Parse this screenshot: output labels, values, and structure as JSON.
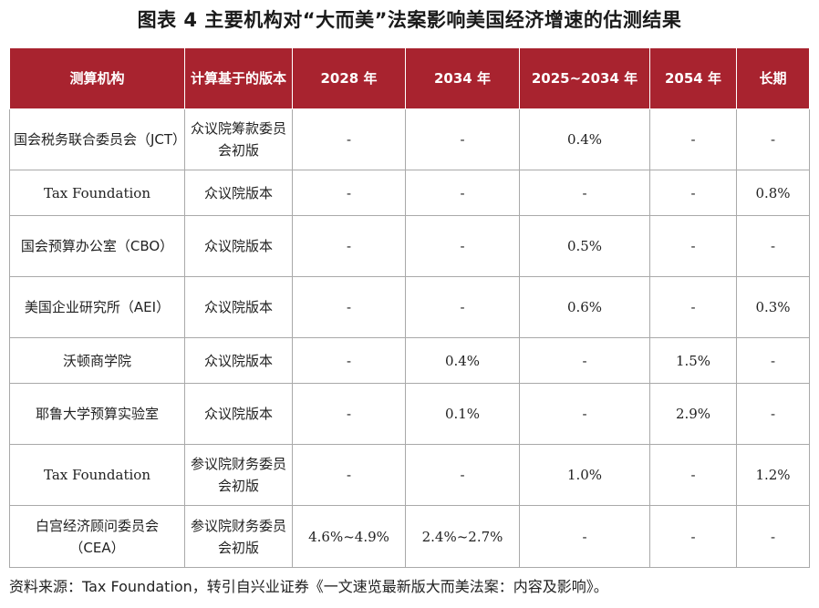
{
  "title": "图表 4  主要机构对“大而美”法案影响美国经济增速的估测结果",
  "table": {
    "headers": [
      "测算机构",
      "计算基于的版本",
      "2028 年",
      "2034 年",
      "2025~2034 年",
      "2054 年",
      "长期"
    ],
    "rows": [
      {
        "org": "国会税务联合委员会（JCT）",
        "basis": "众议院筹款委员会初版",
        "y2028": "-",
        "y2034": "-",
        "y2025_2034": "0.4%",
        "y2054": "-",
        "long_term": "-"
      },
      {
        "org": "Tax Foundation",
        "basis": "众议院版本",
        "y2028": "-",
        "y2034": "-",
        "y2025_2034": "-",
        "y2054": "-",
        "long_term": "0.8%"
      },
      {
        "org": "国会预算办公室（CBO）",
        "basis": "众议院版本",
        "y2028": "-",
        "y2034": "-",
        "y2025_2034": "0.5%",
        "y2054": "-",
        "long_term": "-"
      },
      {
        "org": "美国企业研究所（AEI）",
        "basis": "众议院版本",
        "y2028": "-",
        "y2034": "-",
        "y2025_2034": "0.6%",
        "y2054": "-",
        "long_term": "0.3%"
      },
      {
        "org": "沃顿商学院",
        "basis": "众议院版本",
        "y2028": "-",
        "y2034": "0.4%",
        "y2025_2034": "-",
        "y2054": "1.5%",
        "long_term": "-"
      },
      {
        "org": "耶鲁大学预算实验室",
        "basis": "众议院版本",
        "y2028": "-",
        "y2034": "0.1%",
        "y2025_2034": "-",
        "y2054": "2.9%",
        "long_term": "-"
      },
      {
        "org": "Tax Foundation",
        "basis": "参议院财务委员会初版",
        "y2028": "-",
        "y2034": "-",
        "y2025_2034": "1.0%",
        "y2054": "-",
        "long_term": "1.2%"
      },
      {
        "org": "白宫经济顾问委员会（CEA）",
        "basis": "参议院财务委员会初版",
        "y2028": "4.6%~4.9%",
        "y2034": "2.4%~2.7%",
        "y2025_2034": "-",
        "y2054": "-",
        "long_term": "-"
      }
    ]
  },
  "source": "资料来源：Tax Foundation，转引自兴业证券《一文速览最新版大而美法案：内容及影响》。",
  "colors": {
    "header_bg": "#a8232f",
    "header_text": "#ffffff",
    "grid": "#a9a9a9"
  }
}
